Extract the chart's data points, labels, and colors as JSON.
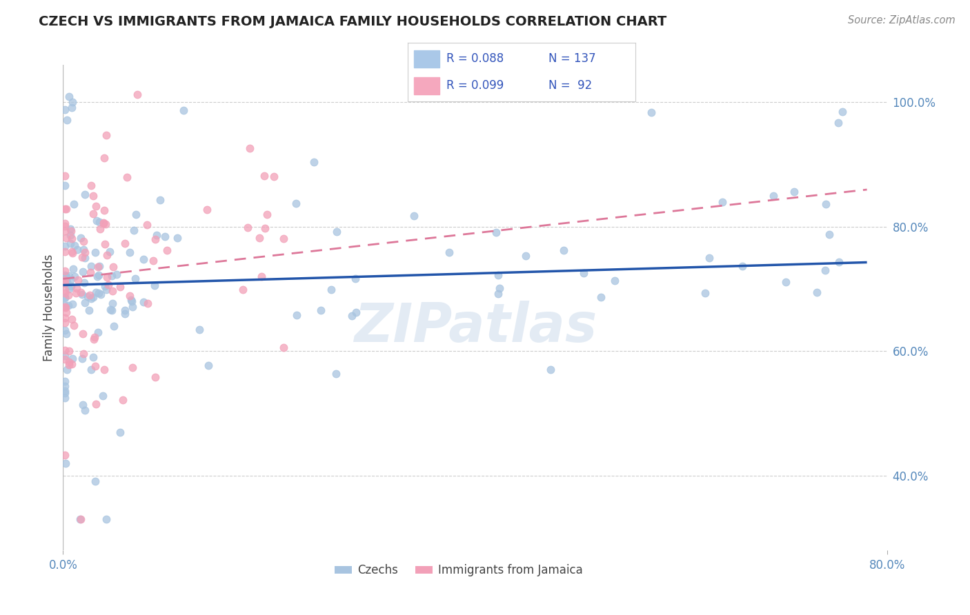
{
  "title": "CZECH VS IMMIGRANTS FROM JAMAICA FAMILY HOUSEHOLDS CORRELATION CHART",
  "source": "Source: ZipAtlas.com",
  "legend_r1": "R = 0.088",
  "legend_n1": "N = 137",
  "legend_r2": "R = 0.099",
  "legend_n2": "N =  92",
  "legend_label1": "Czechs",
  "legend_label2": "Immigrants from Jamaica",
  "watermark": "ZIPatlas",
  "blue_color": "#a8c4e0",
  "pink_color": "#f2a0b8",
  "blue_line_color": "#2255aa",
  "pink_line_color": "#dd7799",
  "title_color": "#222222",
  "legend_text_color": "#3355bb",
  "axis_label_color": "#5588bb",
  "tick_label_color": "#5588bb",
  "grid_color": "#cccccc",
  "xlim": [
    0.0,
    0.8
  ],
  "ylim": [
    0.28,
    1.06
  ],
  "yticks": [
    0.4,
    0.6,
    0.8,
    1.0
  ],
  "ytick_labels": [
    "40.0%",
    "60.0%",
    "80.0%",
    "100.0%"
  ],
  "xtick_labels": [
    "0.0%",
    "80.0%"
  ],
  "ylabel": "Family Households"
}
